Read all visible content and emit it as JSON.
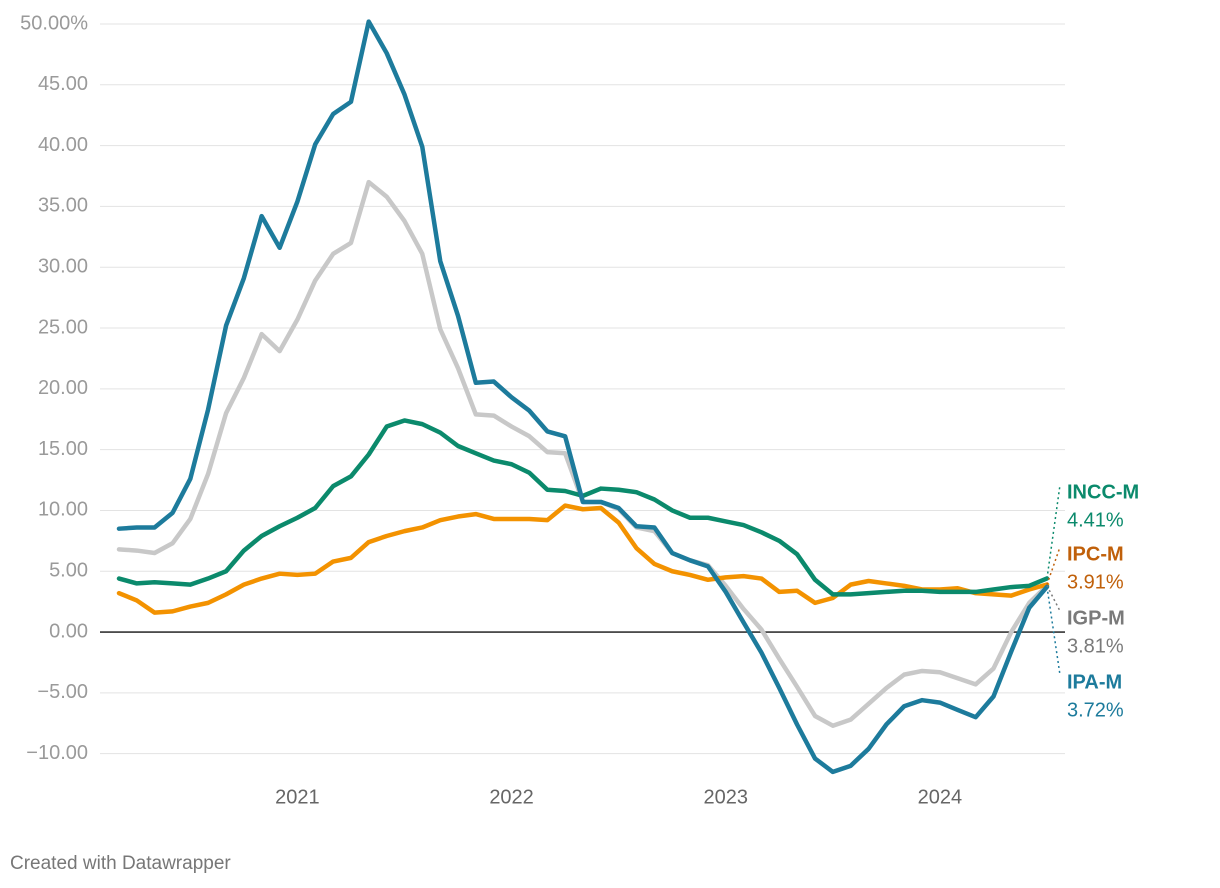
{
  "chart_data": {
    "type": "line",
    "x": [
      2020.167,
      2020.25,
      2020.333,
      2020.417,
      2020.5,
      2020.583,
      2020.667,
      2020.75,
      2020.833,
      2020.917,
      2021,
      2021.083,
      2021.167,
      2021.25,
      2021.333,
      2021.417,
      2021.5,
      2021.583,
      2021.667,
      2021.75,
      2021.833,
      2021.917,
      2022,
      2022.083,
      2022.167,
      2022.25,
      2022.333,
      2022.417,
      2022.5,
      2022.583,
      2022.667,
      2022.75,
      2022.833,
      2022.917,
      2023,
      2023.083,
      2023.167,
      2023.25,
      2023.333,
      2023.417,
      2023.5,
      2023.583,
      2023.667,
      2023.75,
      2023.833,
      2023.917,
      2024,
      2024.083,
      2024.167,
      2024.25,
      2024.333,
      2024.417,
      2024.5
    ],
    "xlim": [
      2020.167,
      2024.5
    ],
    "xticks": [
      2021,
      2022,
      2023,
      2024
    ],
    "ylim": [
      -12,
      50
    ],
    "yticks": [
      {
        "value": 50,
        "label": "50.00%"
      },
      {
        "value": 45,
        "label": "45.00"
      },
      {
        "value": 40,
        "label": "40.00"
      },
      {
        "value": 35,
        "label": "35.00"
      },
      {
        "value": 30,
        "label": "30.00"
      },
      {
        "value": 25,
        "label": "25.00"
      },
      {
        "value": 20,
        "label": "20.00"
      },
      {
        "value": 15,
        "label": "15.00"
      },
      {
        "value": 10,
        "label": "10.00"
      },
      {
        "value": 5,
        "label": "5.00"
      },
      {
        "value": 0,
        "label": "0.00"
      },
      {
        "value": -5,
        "label": "−5.00"
      },
      {
        "value": -10,
        "label": "−10.00"
      }
    ],
    "grid": true,
    "series": [
      {
        "name": "IGP-M",
        "color": "#c8c8c8",
        "label_color": "#7a7a7a",
        "values": [
          6.8,
          6.7,
          6.5,
          7.3,
          9.3,
          13.0,
          18.0,
          20.9,
          24.5,
          23.1,
          25.7,
          28.9,
          31.1,
          32.0,
          37.0,
          35.8,
          33.8,
          31.1,
          24.9,
          21.7,
          17.9,
          17.8,
          16.9,
          16.1,
          14.8,
          14.7,
          10.7,
          10.7,
          10.1,
          8.6,
          8.3,
          6.5,
          5.9,
          5.5,
          3.8,
          1.9,
          0.2,
          -2.2,
          -4.5,
          -6.9,
          -7.7,
          -7.2,
          -5.9,
          -4.6,
          -3.5,
          -3.2,
          -3.3,
          -3.8,
          -4.3,
          -3.0,
          0.0,
          2.4,
          3.81
        ],
        "value_labels": [
          null,
          null,
          null,
          null,
          null,
          null,
          null,
          null,
          null,
          null,
          null,
          null,
          null,
          null,
          null,
          null,
          null,
          null,
          null,
          null,
          null,
          null,
          null,
          null,
          null,
          null,
          null,
          null,
          null,
          null,
          null,
          null,
          null,
          null,
          null,
          null,
          null,
          null,
          null,
          null,
          null,
          null,
          null,
          null,
          null,
          null,
          null,
          null,
          null,
          null,
          null,
          null,
          "3.81%"
        ]
      },
      {
        "name": "IPC-M",
        "color": "#f39200",
        "label_color": "#c0600a",
        "values": [
          3.2,
          2.6,
          1.6,
          1.7,
          2.1,
          2.4,
          3.1,
          3.9,
          4.4,
          4.8,
          4.7,
          4.8,
          5.8,
          6.1,
          7.4,
          7.9,
          8.3,
          8.6,
          9.2,
          9.5,
          9.7,
          9.3,
          9.3,
          9.3,
          9.2,
          10.4,
          10.1,
          10.2,
          9.0,
          6.9,
          5.6,
          5.0,
          4.7,
          4.3,
          4.5,
          4.6,
          4.4,
          3.3,
          3.4,
          2.4,
          2.8,
          3.9,
          4.2,
          4.0,
          3.8,
          3.5,
          3.5,
          3.6,
          3.2,
          3.1,
          3.0,
          3.5,
          3.91
        ],
        "value_labels": [
          null,
          null,
          null,
          null,
          null,
          null,
          null,
          null,
          null,
          null,
          null,
          null,
          null,
          null,
          null,
          null,
          null,
          null,
          null,
          null,
          null,
          null,
          null,
          null,
          null,
          null,
          null,
          null,
          null,
          null,
          null,
          null,
          null,
          null,
          null,
          null,
          null,
          null,
          null,
          null,
          null,
          null,
          null,
          null,
          null,
          null,
          null,
          null,
          null,
          null,
          null,
          null,
          "3.91%"
        ]
      },
      {
        "name": "INCC-M",
        "color": "#0b8a6c",
        "label_color": "#0b8a6c",
        "values": [
          4.4,
          4.0,
          4.1,
          4.0,
          3.9,
          4.4,
          5.0,
          6.7,
          7.9,
          8.7,
          9.4,
          10.2,
          12.0,
          12.8,
          14.6,
          16.9,
          17.4,
          17.1,
          16.4,
          15.3,
          14.7,
          14.1,
          13.8,
          13.1,
          11.7,
          11.6,
          11.2,
          11.8,
          11.7,
          11.5,
          10.9,
          10.0,
          9.4,
          9.4,
          9.1,
          8.8,
          8.2,
          7.5,
          6.4,
          4.3,
          3.1,
          3.1,
          3.2,
          3.3,
          3.4,
          3.4,
          3.3,
          3.3,
          3.3,
          3.5,
          3.7,
          3.8,
          4.41
        ],
        "value_labels": [
          null,
          null,
          null,
          null,
          null,
          null,
          null,
          null,
          null,
          null,
          null,
          null,
          null,
          null,
          null,
          null,
          null,
          null,
          null,
          null,
          null,
          null,
          null,
          null,
          null,
          null,
          null,
          null,
          null,
          null,
          null,
          null,
          null,
          null,
          null,
          null,
          null,
          null,
          null,
          null,
          null,
          null,
          null,
          null,
          null,
          null,
          null,
          null,
          null,
          null,
          null,
          null,
          "4.41%"
        ]
      },
      {
        "name": "IPA-M",
        "color": "#1d7b9c",
        "label_color": "#1d7b9c",
        "values": [
          8.5,
          8.6,
          8.6,
          9.8,
          12.6,
          18.3,
          25.2,
          29.1,
          34.2,
          31.6,
          35.4,
          40.1,
          42.6,
          43.6,
          50.2,
          47.6,
          44.2,
          39.9,
          30.5,
          26.0,
          20.5,
          20.6,
          19.3,
          18.2,
          16.5,
          16.1,
          10.7,
          10.7,
          10.2,
          8.7,
          8.6,
          6.5,
          5.9,
          5.4,
          3.3,
          0.8,
          -1.7,
          -4.6,
          -7.6,
          -10.4,
          -11.5,
          -11.0,
          -9.6,
          -7.6,
          -6.1,
          -5.6,
          -5.8,
          -6.4,
          -7.0,
          -5.3,
          -1.6,
          2.0,
          3.72
        ],
        "value_labels": [
          null,
          null,
          null,
          null,
          null,
          null,
          null,
          null,
          null,
          null,
          null,
          null,
          null,
          null,
          null,
          null,
          null,
          null,
          null,
          null,
          null,
          null,
          null,
          null,
          null,
          null,
          null,
          null,
          null,
          null,
          null,
          null,
          null,
          null,
          null,
          null,
          null,
          null,
          null,
          null,
          null,
          null,
          null,
          null,
          null,
          null,
          null,
          null,
          null,
          null,
          null,
          null,
          "3.72%"
        ]
      }
    ],
    "footer": "Created with Datawrapper"
  }
}
